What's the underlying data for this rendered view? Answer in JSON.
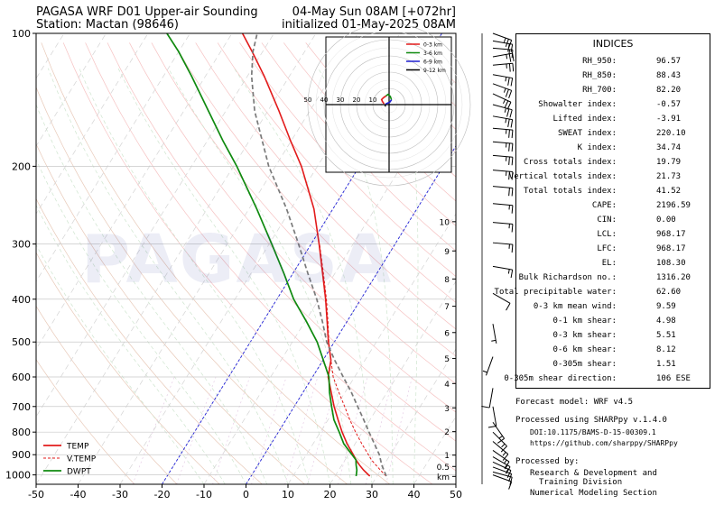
{
  "header": {
    "title_left": "PAGASA WRF D01 Upper-air Sounding",
    "station": "Station: Mactan (98646)",
    "title_right": "04-May Sun 08AM [+072hr]",
    "init": "initialized 01-May-2025 08AM"
  },
  "watermark": "PAGASA",
  "chart_data": {
    "type": "line",
    "title": "PAGASA WRF D01 Upper-air Sounding",
    "xlim": [
      -50,
      50
    ],
    "ylim": [
      1050,
      100
    ],
    "yscale": "log",
    "xticks": [
      -50,
      -40,
      -30,
      -20,
      -10,
      0,
      10,
      20,
      30,
      40,
      50
    ],
    "yticks": [
      100,
      200,
      300,
      400,
      500,
      600,
      700,
      800,
      900,
      1000
    ],
    "height_ticks": [
      {
        "label": "km",
        "p": 1008
      },
      {
        "label": "0.5",
        "p": 957
      },
      {
        "label": "1",
        "p": 902
      },
      {
        "label": "2",
        "p": 798
      },
      {
        "label": "3",
        "p": 705
      },
      {
        "label": "4",
        "p": 621
      },
      {
        "label": "5",
        "p": 545
      },
      {
        "label": "6",
        "p": 476
      },
      {
        "label": "7",
        "p": 415
      },
      {
        "label": "8",
        "p": 360
      },
      {
        "label": "9",
        "p": 311
      },
      {
        "label": "10",
        "p": 267
      }
    ],
    "series": [
      {
        "name": "TEMP",
        "color": "#e21b1b",
        "p": [
          1006,
          1000,
          975,
          950,
          925,
          900,
          850,
          800,
          750,
          700,
          650,
          600,
          550,
          500,
          450,
          400,
          350,
          300,
          250,
          200,
          175,
          150,
          125,
          110,
          100
        ],
        "values": [
          28.3,
          27.8,
          25.9,
          24.2,
          22.6,
          21.2,
          18.1,
          15.2,
          12.4,
          9.5,
          6.7,
          3.7,
          1.9,
          -1.4,
          -4.7,
          -8.4,
          -12.9,
          -18.1,
          -24.5,
          -33.8,
          -40.2,
          -47.3,
          -56.0,
          -62.5,
          -67.5
        ]
      },
      {
        "name": "V.TEMP",
        "color": "#e21b1b",
        "p": [
          1006,
          1000,
          975,
          950,
          925,
          900,
          850,
          800,
          750,
          700,
          650,
          600,
          550,
          500,
          450,
          400,
          350,
          300
        ],
        "values": [
          32.2,
          31.7,
          29.9,
          28.1,
          26.3,
          24.8,
          21.6,
          18.4,
          15.2,
          12.0,
          8.5,
          4.9,
          1.9,
          -1.3,
          -4.5,
          -8.2,
          -12.7,
          -18.0
        ]
      },
      {
        "name": "DWPT",
        "color": "#0f8a0f",
        "p": [
          1006,
          1000,
          975,
          950,
          925,
          900,
          850,
          800,
          750,
          700,
          650,
          600,
          550,
          500,
          450,
          400,
          350,
          300,
          250,
          200,
          175,
          150,
          125,
          110,
          100
        ],
        "values": [
          25.0,
          24.9,
          24.3,
          23.4,
          22.6,
          20.9,
          17.3,
          14.5,
          11.4,
          8.9,
          6.3,
          3.9,
          0.1,
          -4.1,
          -9.6,
          -16.0,
          -22.1,
          -29.4,
          -38.1,
          -49.2,
          -56.3,
          -64.1,
          -73.3,
          -80.0,
          -85.5
        ]
      },
      {
        "name": "Parcel",
        "color": "#7a7a7a",
        "p": [
          1006,
          950,
          900,
          850,
          800,
          750,
          700,
          650,
          600,
          550,
          500,
          450,
          400,
          350,
          300,
          250,
          200,
          150,
          125,
          110,
          100
        ],
        "values": [
          32.2,
          29.5,
          27.4,
          24.6,
          21.6,
          18.5,
          15.1,
          11.5,
          7.3,
          2.8,
          -1.8,
          -5.8,
          -10.5,
          -16.4,
          -23.0,
          -31.0,
          -41.6,
          -53.1,
          -59.0,
          -62.3,
          -64.0
        ]
      }
    ],
    "legend": {
      "position": "bottom-left",
      "entries": [
        "TEMP",
        "V.TEMP",
        "DWPT"
      ]
    },
    "hodograph": {
      "legend": [
        "0-3 km",
        "3-6 km",
        "6-9 km",
        "9-12 km"
      ],
      "legend_colors": [
        "#e21b1b",
        "#0f8a0f",
        "#1f1fd0",
        "#000000"
      ],
      "ring_labels": [
        "50",
        "40",
        "30",
        "20",
        "10"
      ],
      "u": [
        -3.1,
        -4.0,
        -4.6,
        -3.5,
        -1.9,
        -0.6,
        0.7,
        1.5,
        0.4,
        -1.0,
        -2.2,
        -2.4,
        -2.6
      ],
      "v": [
        0.5,
        1.8,
        3.1,
        4.3,
        5.4,
        6.3,
        5.1,
        3.0,
        1.5,
        0.9,
        0.2,
        -0.6,
        -0.4
      ],
      "layer_index": [
        0,
        4,
        7,
        10,
        12
      ]
    },
    "winds": {
      "p": [
        100,
        104,
        108,
        113,
        118,
        124,
        130,
        137,
        145,
        154,
        164,
        176,
        189,
        204,
        222,
        243,
        268,
        298,
        337,
        388,
        455,
        540,
        636,
        700,
        760,
        800,
        840,
        880,
        910,
        935,
        960,
        985,
        1000
      ],
      "speed": [
        25,
        20,
        15,
        25,
        25,
        25,
        25,
        25,
        25,
        25,
        25,
        25,
        25,
        25,
        20,
        15,
        15,
        15,
        15,
        10,
        5,
        5,
        10,
        10,
        15,
        15,
        15,
        15,
        15,
        15,
        10,
        10,
        10
      ],
      "dir": [
        110,
        100,
        95,
        80,
        85,
        100,
        110,
        115,
        105,
        100,
        95,
        95,
        95,
        95,
        95,
        95,
        95,
        95,
        100,
        120,
        170,
        200,
        190,
        170,
        145,
        135,
        130,
        125,
        120,
        115,
        110,
        105,
        110
      ]
    }
  },
  "indices": {
    "title": "INDICES",
    "rows": [
      {
        "label": "RH_950:",
        "value": "96.57"
      },
      {
        "label": "RH_850:",
        "value": "88.43"
      },
      {
        "label": "RH_700:",
        "value": "82.20"
      },
      {
        "label": "Showalter index:",
        "value": "-0.57"
      },
      {
        "label": "Lifted index:",
        "value": "-3.91"
      },
      {
        "label": "SWEAT index:",
        "value": "220.10"
      },
      {
        "label": "K index:",
        "value": "34.74"
      },
      {
        "label": "Cross totals index:",
        "value": "19.79"
      },
      {
        "label": "Vertical totals index:",
        "value": "21.73"
      },
      {
        "label": "Total totals index:",
        "value": "41.52"
      },
      {
        "label": "CAPE:",
        "value": "2196.59"
      },
      {
        "label": "CIN:",
        "value": "0.00"
      },
      {
        "label": "LCL:",
        "value": "968.17"
      },
      {
        "label": "LFC:",
        "value": "968.17"
      },
      {
        "label": "EL:",
        "value": "108.30"
      },
      {
        "label": "Bulk Richardson no.:",
        "value": "1316.20"
      },
      {
        "label": "Total precipitable water:",
        "value": "62.60"
      },
      {
        "label": "0-3 km mean wind:",
        "value": "9.59"
      },
      {
        "label": "0-1 km shear:",
        "value": "4.98"
      },
      {
        "label": "0-3 km shear:",
        "value": "5.51"
      },
      {
        "label": "0-6 km shear:",
        "value": "8.12"
      },
      {
        "label": "0-305m shear:",
        "value": "1.51"
      },
      {
        "label": "0-305m shear direction:",
        "value": "106 ESE"
      }
    ]
  },
  "footer": {
    "model": "Forecast model: WRF v4.5",
    "processed": "Processed using SHARPpy v.1.4.0",
    "doi": "DOI:10.1175/BAMS-D-15-00309.1",
    "url": "https://github.com/sharppy/SHARPpy",
    "by": "Processed by:",
    "org1": "Research & Development and",
    "org2": "Training Division",
    "org3": "Numerical Modeling Section"
  }
}
